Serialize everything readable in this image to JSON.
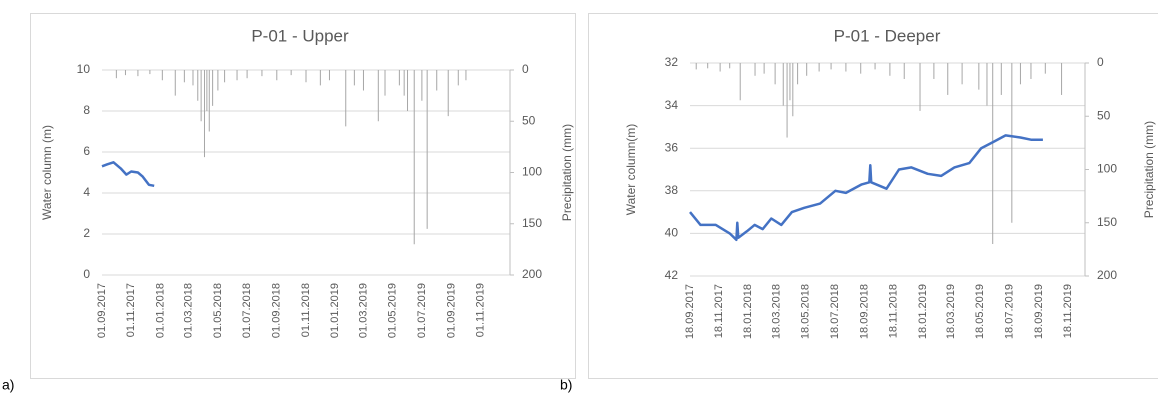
{
  "chart_data": [
    {
      "type": "line",
      "panel_label": "a)",
      "title": "P-01 - Upper",
      "y_label": "Water column (m)",
      "y2_label": "Precipitation (mm)",
      "xlim": [
        "01.09.2017",
        "01.01.2020"
      ],
      "xticks": [
        "01.09.2017",
        "01.11.2017",
        "01.01.2018",
        "01.03.2018",
        "01.05.2018",
        "01.07.2018",
        "01.09.2018",
        "01.11.2018",
        "01.01.2019",
        "01.03.2019",
        "01.05.2019",
        "01.07.2019",
        "01.09.2019",
        "01.11.2019"
      ],
      "ylim": [
        0,
        10
      ],
      "yticks": [
        0,
        2,
        4,
        6,
        8,
        10
      ],
      "y2lim": [
        200,
        0
      ],
      "y2ticks": [
        0,
        50,
        100,
        150,
        200
      ],
      "grid": true,
      "series": [
        {
          "type": "bar",
          "axis": "y2",
          "color": "#a6a6a6",
          "x": [
            "01.10.2017",
            "20.10.2017",
            "15.11.2017",
            "10.12.2017",
            "05.01.2018",
            "01.02.2018",
            "20.02.2018",
            "10.03.2018",
            "20.03.2018",
            "27.03.2018",
            "03.04.2018",
            "08.04.2018",
            "13.04.2018",
            "20.04.2018",
            "01.05.2018",
            "15.05.2018",
            "10.06.2018",
            "01.07.2018",
            "01.08.2018",
            "01.09.2018",
            "01.10.2018",
            "01.11.2018",
            "01.12.2018",
            "20.12.2018",
            "23.01.2019",
            "10.02.2019",
            "01.03.2019",
            "01.04.2019",
            "15.04.2019",
            "15.05.2019",
            "25.05.2019",
            "01.06.2019",
            "15.06.2019",
            "01.07.2019",
            "12.07.2019",
            "01.08.2019",
            "25.08.2019",
            "15.09.2019",
            "01.10.2019"
          ],
          "values": [
            8,
            5,
            6,
            4,
            10,
            25,
            12,
            15,
            30,
            50,
            85,
            40,
            60,
            35,
            20,
            12,
            10,
            8,
            6,
            10,
            5,
            12,
            15,
            10,
            55,
            15,
            20,
            50,
            25,
            15,
            25,
            40,
            170,
            30,
            155,
            20,
            45,
            15,
            10
          ]
        },
        {
          "type": "line",
          "axis": "y",
          "color": "#4472c4",
          "x": [
            "01.09.2017",
            "12.09.2017",
            "25.09.2017",
            "10.10.2017",
            "22.10.2017",
            "01.11.2017",
            "15.11.2017",
            "25.11.2017",
            "08.12.2017",
            "19.12.2017"
          ],
          "values": [
            5.3,
            5.4,
            5.5,
            5.2,
            4.9,
            5.05,
            5.0,
            4.8,
            4.4,
            4.35
          ]
        }
      ]
    },
    {
      "type": "line",
      "panel_label": "b)",
      "title": "P-01 - Deeper",
      "y_label": "Water column(m)",
      "y2_label": "Precipitation (mm)",
      "xlim": [
        "18.09.2017",
        "23.12.2019"
      ],
      "xticks": [
        "18.09.2017",
        "18.11.2017",
        "18.01.2018",
        "18.03.2018",
        "18.05.2018",
        "18.07.2018",
        "18.09.2018",
        "18.11.2018",
        "18.01.2019",
        "18.03.2019",
        "18.05.2019",
        "18.07.2019",
        "18.09.2019",
        "18.11.2019"
      ],
      "ylim": [
        42,
        32
      ],
      "yticks": [
        32,
        34,
        36,
        38,
        40,
        42
      ],
      "y2lim": [
        200,
        0
      ],
      "y2ticks": [
        0,
        50,
        100,
        150,
        200
      ],
      "grid": true,
      "series": [
        {
          "type": "bar",
          "axis": "y2",
          "color": "#a6a6a6",
          "x": [
            "01.10.2017",
            "25.10.2017",
            "20.11.2017",
            "10.12.2017",
            "01.01.2018",
            "01.02.2018",
            "20.02.2018",
            "15.03.2018",
            "01.04.2018",
            "09.04.2018",
            "15.04.2018",
            "21.04.2018",
            "01.05.2018",
            "20.05.2018",
            "15.06.2018",
            "10.07.2018",
            "10.08.2018",
            "10.09.2018",
            "10.10.2018",
            "10.11.2018",
            "10.12.2018",
            "12.01.2019",
            "10.02.2019",
            "11.03.2019",
            "10.04.2019",
            "15.05.2019",
            "01.06.2019",
            "13.06.2019",
            "01.07.2019",
            "23.07.2019",
            "10.08.2019",
            "01.09.2019",
            "01.10.2019",
            "04.11.2019"
          ],
          "values": [
            6,
            5,
            8,
            5,
            35,
            12,
            10,
            20,
            40,
            70,
            35,
            50,
            20,
            12,
            8,
            6,
            8,
            10,
            6,
            12,
            15,
            45,
            15,
            30,
            20,
            25,
            40,
            170,
            30,
            150,
            20,
            15,
            10,
            30
          ]
        },
        {
          "type": "line",
          "axis": "y",
          "color": "#4472c4",
          "x": [
            "18.09.2017",
            "10.10.2017",
            "11.11.2017",
            "10.12.2017",
            "24.12.2017",
            "26.12.2017",
            "28.12.2017",
            "15.01.2018",
            "31.01.2018",
            "17.02.2018",
            "07.03.2018",
            "28.03.2018",
            "19.04.2018",
            "15.05.2018",
            "17.06.2018",
            "19.07.2018",
            "10.08.2018",
            "12.09.2018",
            "28.09.2018",
            "30.09.2018",
            "02.10.2018",
            "03.11.2018",
            "29.11.2018",
            "25.12.2018",
            "28.01.2019",
            "25.02.2019",
            "25.03.2019",
            "25.04.2019",
            "20.05.2019",
            "15.06.2019",
            "10.07.2019",
            "10.08.2019",
            "01.09.2019",
            "26.09.2019"
          ],
          "values": [
            39.0,
            39.6,
            39.6,
            40.0,
            40.3,
            39.5,
            40.2,
            39.9,
            39.6,
            39.8,
            39.3,
            39.6,
            39.0,
            38.8,
            38.6,
            38.0,
            38.1,
            37.7,
            37.6,
            36.8,
            37.6,
            37.9,
            37.0,
            36.9,
            37.2,
            37.3,
            36.9,
            36.7,
            36.0,
            35.7,
            35.4,
            35.5,
            35.6,
            35.6
          ]
        }
      ]
    }
  ]
}
